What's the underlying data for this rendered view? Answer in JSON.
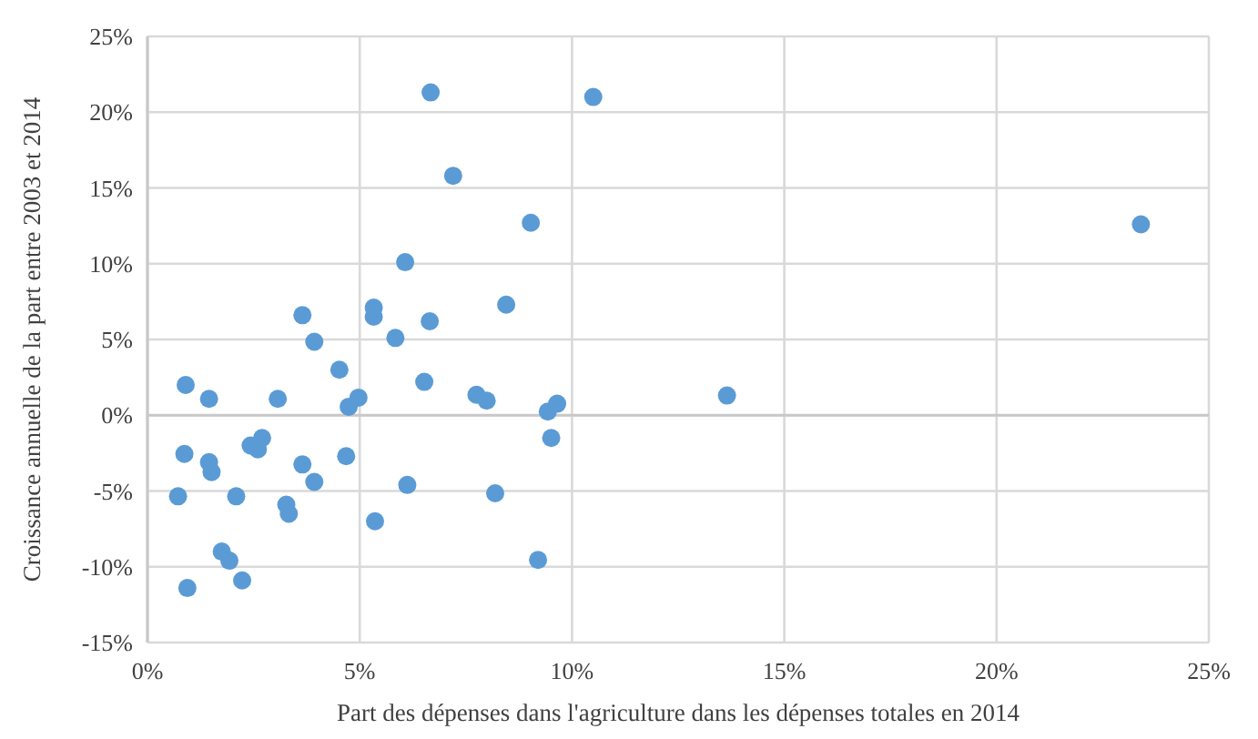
{
  "chart_data": {
    "type": "scatter",
    "xlabel": "Part des dépenses dans l'agriculture dans les dépenses totales en 2014",
    "ylabel": "Croissance annuelle de la part entre 2003 et 2014",
    "grid": true,
    "marker": "circle",
    "xlim": [
      0,
      25
    ],
    "xticks": [
      {
        "value": 0,
        "label": "0%"
      },
      {
        "value": 5,
        "label": "5%"
      },
      {
        "value": 10,
        "label": "10%"
      },
      {
        "value": 15,
        "label": "15%"
      },
      {
        "value": 20,
        "label": "20%"
      },
      {
        "value": 25,
        "label": "25%"
      }
    ],
    "ylim": [
      -15,
      25
    ],
    "yticks": [
      {
        "value": -15,
        "label": "-15%"
      },
      {
        "value": -10,
        "label": "-10%"
      },
      {
        "value": -5,
        "label": "-5%"
      },
      {
        "value": 0,
        "label": "0%"
      },
      {
        "value": 5,
        "label": "5%"
      },
      {
        "value": 10,
        "label": "10%"
      },
      {
        "value": 15,
        "label": "15%"
      },
      {
        "value": 20,
        "label": "20%"
      },
      {
        "value": 25,
        "label": "25%"
      }
    ],
    "series": [
      {
        "color": "#5b9bd5",
        "x": [
          6.67,
          10.5,
          7.2,
          9.03,
          6.07,
          5.33,
          5.33,
          8.45,
          6.65,
          5.84,
          3.93,
          4.52,
          6.52,
          4.74,
          4.97,
          7.75,
          7.99,
          9.43,
          9.65,
          9.51,
          4.68,
          3.93,
          6.12,
          8.19,
          5.36,
          9.2,
          3.65,
          0.9,
          1.45,
          3.07,
          0.87,
          1.45,
          1.51,
          2.43,
          2.7,
          2.6,
          3.65,
          0.72,
          2.09,
          3.27,
          3.33,
          1.75,
          1.93,
          0.94,
          2.23,
          13.65,
          23.4
        ],
        "values": [
          21.3,
          21.0,
          15.8,
          12.7,
          10.1,
          7.1,
          6.5,
          7.3,
          6.2,
          5.1,
          4.85,
          3.0,
          2.2,
          0.56,
          1.16,
          1.35,
          0.96,
          0.24,
          0.76,
          -1.5,
          -2.7,
          -4.4,
          -4.6,
          -5.15,
          -7.0,
          -9.55,
          6.6,
          2.0,
          1.08,
          1.08,
          -2.55,
          -3.1,
          -3.75,
          -2.0,
          -1.5,
          -2.25,
          -3.25,
          -5.35,
          -5.35,
          -5.9,
          -6.5,
          -9.0,
          -9.6,
          -11.4,
          -10.9,
          1.3,
          12.6
        ]
      }
    ]
  }
}
